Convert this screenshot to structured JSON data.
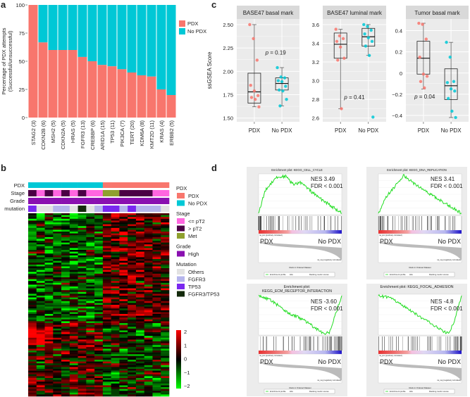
{
  "panel_letters": {
    "a": "a",
    "b": "b",
    "c": "c",
    "d": "d"
  },
  "colors": {
    "pdx": "#f8766d",
    "no_pdx": "#00c8d6",
    "le_pt2": "#ff66e0",
    "gt_pt2": "#4b0045",
    "met": "#8fa02e",
    "high": "#8a10b0",
    "others": "#e2e2e2",
    "fgfr3": "#b5b5ec",
    "tp53": "#7a28f0",
    "fgfr3_tp53": "#142a0c",
    "es_curve": "#22dd22"
  },
  "chart_data": [
    {
      "id": "a",
      "type": "bar",
      "stacked": true,
      "ylabel": [
        "Percentage of PDX attempts",
        "(Successful/unsuccessful)"
      ],
      "ylim": [
        0,
        100
      ],
      "yticks": [
        0,
        25,
        50,
        75,
        100
      ],
      "categories": [
        "STAG2 (3)",
        "CDKN2B (6)",
        "MSH2 (5)",
        "CDKN2A (5)",
        "HRAS (5)",
        "FGFR3 (13)",
        "CREBBP (6)",
        "ARID1A (15)",
        "TP53 (11)",
        "PIK3CA (7)",
        "TERT (20)",
        "KDM6A (8)",
        "KMT2D (11)",
        "KRAS (4)",
        "ERBB2 (5)"
      ],
      "series": [
        {
          "name": "PDX",
          "values": [
            100,
            66.7,
            60,
            60,
            60,
            53.8,
            50,
            46.7,
            45.5,
            42.9,
            40,
            37.5,
            36.4,
            25,
            20
          ]
        },
        {
          "name": "No PDX",
          "values": [
            0,
            33.3,
            40,
            40,
            40,
            46.2,
            50,
            53.3,
            54.5,
            57.1,
            60,
            62.5,
            63.6,
            75,
            80
          ]
        }
      ],
      "legend": [
        "PDX",
        "No PDX"
      ],
      "legend_position": "right"
    },
    {
      "id": "c",
      "type": "box",
      "ylabel": "ssGSEA Score",
      "groups": [
        "PDX",
        "No PDX"
      ],
      "facets": [
        {
          "title": "BASE47 basal mark",
          "ylim": [
            1.46,
            2.56
          ],
          "yticks": [
            1.5,
            1.75,
            2.0,
            2.25,
            2.5
          ],
          "ytick_labels": [
            "1.50",
            "1.75",
            "2.00",
            "2.25",
            "2.50"
          ],
          "p_label": "p = 0.19",
          "boxes": [
            {
              "group": "PDX",
              "whisker_low": 1.62,
              "q1": 1.66,
              "median": 1.78,
              "q3": 1.98,
              "whisker_high": 2.5,
              "points": [
                2.5,
                2.35,
                2.12,
                1.85,
                1.79,
                1.74,
                1.72,
                1.7,
                1.62
              ]
            },
            {
              "group": "No PDX",
              "whisker_low": 1.63,
              "q1": 1.8,
              "median": 1.87,
              "q3": 1.93,
              "whisker_high": 2.04,
              "points": [
                2.04,
                1.94,
                1.93,
                1.9,
                1.89,
                1.84,
                1.8,
                1.79,
                1.7,
                1.63
              ]
            }
          ]
        },
        {
          "title": "BASE47 luminal mark",
          "ylim": [
            2.56,
            3.66
          ],
          "yticks": [
            2.6,
            2.8,
            3.0,
            3.2,
            3.4,
            3.6
          ],
          "ytick_labels": [
            "2.6",
            "2.8",
            "3.0",
            "3.2",
            "3.4",
            "3.6"
          ],
          "p_label": "p = 0.41",
          "boxes": [
            {
              "group": "PDX",
              "whisker_low": 2.7,
              "q1": 3.24,
              "median": 3.39,
              "q3": 3.51,
              "whisker_high": 3.55,
              "points": [
                3.55,
                3.48,
                3.45,
                3.42,
                3.36,
                3.24,
                3.22,
                2.7
              ]
            },
            {
              "group": "No PDX",
              "whisker_low": 3.27,
              "q1": 3.37,
              "median": 3.47,
              "q3": 3.56,
              "whisker_high": 3.6,
              "points": [
                3.6,
                3.58,
                3.54,
                3.5,
                3.46,
                3.42,
                3.37,
                3.27,
                2.61
              ]
            }
          ]
        },
        {
          "title": "Tumor basal mark",
          "ylim": [
            -0.46,
            0.51
          ],
          "yticks": [
            -0.4,
            -0.2,
            0,
            0.2,
            0.4
          ],
          "ytick_labels": [
            "−0.4",
            "−0.2",
            "0",
            "0.2",
            "0.4"
          ],
          "p_label": "p = 0.04",
          "boxes": [
            {
              "group": "PDX",
              "whisker_low": -0.15,
              "q1": -0.01,
              "median": 0.14,
              "q3": 0.3,
              "whisker_high": 0.47,
              "points": [
                0.47,
                0.46,
                0.32,
                0.15,
                -0.01,
                -0.03,
                -0.08,
                -0.14
              ]
            },
            {
              "group": "No PDX",
              "whisker_low": -0.42,
              "q1": -0.25,
              "median": -0.12,
              "q3": 0.04,
              "whisker_high": 0.29,
              "points": [
                0.29,
                0.15,
                -0.08,
                -0.09,
                -0.15,
                -0.17,
                -0.24,
                -0.36,
                -0.42
              ]
            }
          ]
        }
      ]
    },
    {
      "id": "b",
      "type": "heatmap",
      "n_samples": 17,
      "n_genes": 100,
      "color_scale": {
        "min": -2,
        "max": 2,
        "low": "#00ff00",
        "mid": "#000000",
        "high": "#ff0000",
        "ticks": [
          "2",
          "1",
          "0",
          "−1",
          "−2"
        ]
      },
      "annotation_labels": [
        "PDX",
        "Stage",
        "Grade",
        "mutation"
      ],
      "annotations": {
        "PDX": [
          "No PDX",
          "No PDX",
          "No PDX",
          "No PDX",
          "No PDX",
          "No PDX",
          "No PDX",
          "No PDX",
          "No PDX",
          "PDX",
          "PDX",
          "PDX",
          "PDX",
          "PDX",
          "PDX",
          "PDX",
          "PDX"
        ],
        "Stage": [
          "> pT2",
          "<= pT2",
          "> pT2",
          "<= pT2",
          "> pT2",
          "<= pT2",
          "> pT2",
          "<= pT2",
          "<= pT2",
          "Met",
          "Met",
          "> pT2",
          "> pT2",
          "> pT2",
          "> pT2",
          "<= pT2",
          "<= pT2"
        ],
        "Grade": [
          "High",
          "High",
          "High",
          "High",
          "High",
          "High",
          "High",
          "High",
          "High",
          "High",
          "High",
          "High",
          "High",
          "High",
          "High",
          "High",
          "High"
        ],
        "mutation": [
          "TP53",
          "Others",
          "Others",
          "FGFR3",
          "FGFR3",
          "Others",
          "FGFR3/TP53",
          "Others",
          "FGFR3",
          "TP53",
          "TP53",
          "FGFR3",
          "TP53",
          "FGFR3",
          "FGFR3",
          "FGFR3",
          "Others"
        ]
      },
      "legend": [
        {
          "title": "PDX",
          "items": [
            {
              "label": "PDX",
              "color": "#f8766d"
            },
            {
              "label": "No PDX",
              "color": "#00c8d6"
            }
          ]
        },
        {
          "title": "Stage",
          "items": [
            {
              "label": "<= pT2",
              "color": "#ff66e0"
            },
            {
              "label": "> pT2",
              "color": "#4b0045"
            },
            {
              "label": "Met",
              "color": "#8fa02e"
            }
          ]
        },
        {
          "title": "Grade",
          "items": [
            {
              "label": "High",
              "color": "#8a10b0"
            }
          ]
        },
        {
          "title": "Mutation",
          "items": [
            {
              "label": "Others",
              "color": "#e2e2e2"
            },
            {
              "label": "FGFR3",
              "color": "#b5b5ec"
            },
            {
              "label": "TP53",
              "color": "#7a28f0"
            },
            {
              "label": "FGFR3/TP53",
              "color": "#142a0c"
            }
          ]
        }
      ]
    },
    {
      "id": "d",
      "type": "line",
      "plots": [
        {
          "title": [
            "Enrichment plot: KEGG_CELL_CYCLE"
          ],
          "nes": "NES 3.49",
          "fdr": "FDR < 0.001",
          "es_shape": [
            [
              0,
              0
            ],
            [
              0.08,
              0.6
            ],
            [
              0.2,
              0.93
            ],
            [
              0.32,
              0.98
            ],
            [
              0.42,
              0.75
            ],
            [
              0.5,
              0.82
            ],
            [
              0.7,
              0.45
            ],
            [
              1,
              0
            ]
          ],
          "hits_side": "left"
        },
        {
          "title": [
            "Enrichment plot: KEGG_DNA_REPLICATION"
          ],
          "nes": "NES 3.41",
          "fdr": "FDR < 0.001",
          "es_shape": [
            [
              0,
              0
            ],
            [
              0.1,
              0.45
            ],
            [
              0.2,
              0.7
            ],
            [
              0.3,
              1.0
            ],
            [
              0.45,
              0.75
            ],
            [
              0.7,
              0.4
            ],
            [
              1,
              0
            ]
          ],
          "hits_side": "left"
        },
        {
          "title": [
            "Enrichment plot:",
            "KEGG_ECM_RECEPTOR_INTERACTION"
          ],
          "nes": "NES -3.60",
          "fdr": "FDR < 0.001",
          "es_shape": [
            [
              0,
              0
            ],
            [
              0.15,
              -0.12
            ],
            [
              0.35,
              -0.45
            ],
            [
              0.55,
              -0.65
            ],
            [
              0.78,
              -1.0
            ],
            [
              0.85,
              -0.97
            ],
            [
              1,
              0
            ]
          ],
          "hits_side": "right"
        },
        {
          "title": [
            "Enrichment plot: KEGG_FOCAL_ADHESION"
          ],
          "nes": "NES -4.8",
          "fdr": "FDR < 0.001",
          "es_shape": [
            [
              0,
              0
            ],
            [
              0.15,
              -0.05
            ],
            [
              0.35,
              -0.35
            ],
            [
              0.5,
              -0.55
            ],
            [
              0.75,
              -0.9
            ],
            [
              0.84,
              -1.0
            ],
            [
              0.9,
              -0.75
            ],
            [
              1,
              0
            ]
          ],
          "hits_side": "right"
        }
      ],
      "group_labels": [
        "PDX",
        "No PDX"
      ],
      "small_labels": {
        "pos": "na_pos (positively correlated)",
        "neg": "na_neg (negatively correlated)",
        "xlabel": "Rank in Ordered Dataset",
        "legend": [
          "Enrichment profile",
          "Hits",
          "Ranking metric scores"
        ]
      }
    }
  ]
}
